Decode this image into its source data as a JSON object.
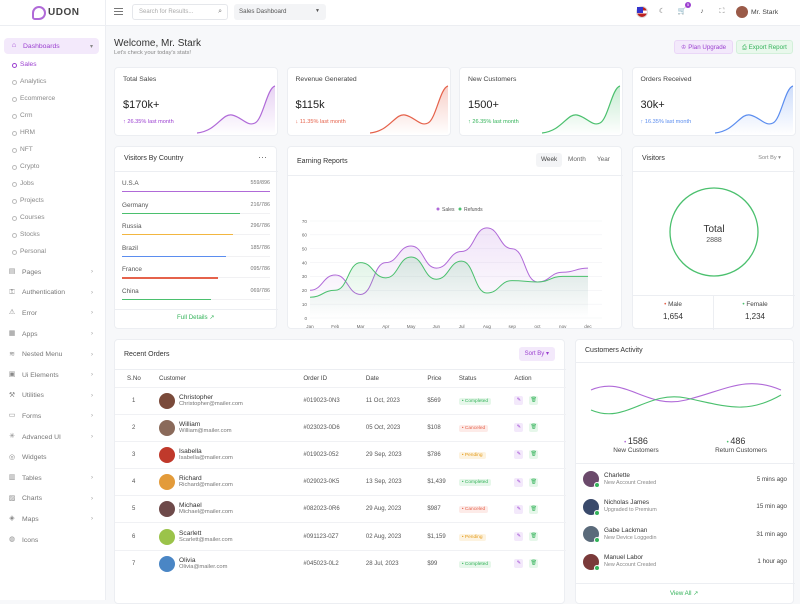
{
  "brand": {
    "name": "UDON"
  },
  "sidebar": {
    "group": "Dashboards",
    "sub_items": [
      "Sales",
      "Analytics",
      "Ecommerce",
      "Crm",
      "HRM",
      "NFT",
      "Crypto",
      "Jobs",
      "Projects",
      "Courses",
      "Stocks",
      "Personal"
    ],
    "items": [
      {
        "label": "Pages",
        "icon": "doc-icon",
        "chevron": true
      },
      {
        "label": "Authentication",
        "icon": "lock-icon",
        "chevron": true
      },
      {
        "label": "Error",
        "icon": "warning-icon",
        "chevron": true
      },
      {
        "label": "Apps",
        "icon": "apps-icon",
        "chevron": true
      },
      {
        "label": "Nested Menu",
        "icon": "layers-icon",
        "chevron": true
      },
      {
        "label": "Ui Elements",
        "icon": "cube-icon",
        "chevron": true
      },
      {
        "label": "Utilities",
        "icon": "tool-icon",
        "chevron": true
      },
      {
        "label": "Forms",
        "icon": "form-icon",
        "chevron": true
      },
      {
        "label": "Advanced UI",
        "icon": "sparkle-icon",
        "chevron": true
      },
      {
        "label": "Widgets",
        "icon": "widget-icon",
        "chevron": false
      },
      {
        "label": "Tables",
        "icon": "table-icon",
        "chevron": true
      },
      {
        "label": "Charts",
        "icon": "chart-icon",
        "chevron": true
      },
      {
        "label": "Maps",
        "icon": "map-icon",
        "chevron": true
      },
      {
        "label": "Icons",
        "icon": "icons-icon",
        "chevron": false
      }
    ]
  },
  "topbar": {
    "search_placeholder": "Search for Results...",
    "dashboard_select": "Sales Dashboard",
    "cart_count": "5",
    "user_name": "Mr. Stark"
  },
  "header": {
    "title": "Welcome, Mr. Stark",
    "subtitle": "Let's check your today's stats!",
    "plan_button": "Plan Upgrade",
    "export_button": "Export Report"
  },
  "stats": [
    {
      "label": "Total Sales",
      "value": "$170k+",
      "change": "26.35% last month",
      "direction": "up",
      "color": "#b06ad8"
    },
    {
      "label": "Revenue Generated",
      "value": "$115k",
      "change": "11.35% last month",
      "direction": "down",
      "color": "#e5624b"
    },
    {
      "label": "New Customers",
      "value": "1500+",
      "change": "26.35% last month",
      "direction": "up",
      "color": "#4bc06e"
    },
    {
      "label": "Orders Received",
      "value": "30k+",
      "change": "16.35% last month",
      "direction": "up",
      "color": "#5b8def"
    }
  ],
  "visitors_by_country": {
    "title": "Visitors By Country",
    "more_icon": "more-icon",
    "rows": [
      {
        "name": "U.S.A",
        "value": "559/896",
        "pct": 1.0,
        "color": "#b06ad8"
      },
      {
        "name": "Germany",
        "value": "216/786",
        "pct": 0.8,
        "color": "#4bc06e"
      },
      {
        "name": "Russia",
        "value": "296/786",
        "pct": 0.75,
        "color": "#f2b640"
      },
      {
        "name": "Brazil",
        "value": "185/786",
        "pct": 0.7,
        "color": "#5b8def"
      },
      {
        "name": "France",
        "value": "095/786",
        "pct": 0.65,
        "color": "#e5624b"
      },
      {
        "name": "China",
        "value": "069/786",
        "pct": 0.6,
        "color": "#4bc06e"
      }
    ],
    "footer_link": "Full Details"
  },
  "earning_reports": {
    "title": "Earning Reports",
    "tabs": [
      "Week",
      "Month",
      "Year"
    ],
    "active_tab": "Week"
  },
  "chart_data": {
    "type": "line",
    "categories": [
      "Jan",
      "Feb",
      "Mar",
      "Apr",
      "May",
      "Jun",
      "Jul",
      "Aug",
      "sep",
      "oct",
      "nov",
      "dec"
    ],
    "series": [
      {
        "name": "Sales",
        "color": "#b06ad8",
        "values": [
          20,
          31,
          17,
          40,
          52,
          36,
          48,
          65,
          50,
          26,
          33,
          36
        ]
      },
      {
        "name": "Refunds",
        "color": "#4bc06e",
        "values": [
          15,
          20,
          40,
          29,
          44,
          28,
          41,
          18,
          27,
          26,
          30,
          30
        ]
      }
    ],
    "ylim": [
      0,
      70
    ],
    "yticks": [
      0,
      10,
      20,
      30,
      40,
      50,
      60,
      70
    ],
    "legend": "top"
  },
  "visitors": {
    "title": "Visitors",
    "sort_label": "Sort By",
    "total_label": "Total",
    "total_value": "2888",
    "male_label": "Male",
    "male_value": "1,654",
    "female_label": "Female",
    "female_value": "1,234"
  },
  "recent_orders": {
    "title": "Recent Orders",
    "sort_label": "Sort By",
    "columns": [
      "S.No",
      "Customer",
      "Order ID",
      "Date",
      "Price",
      "Status",
      "Action"
    ],
    "rows": [
      {
        "no": "1",
        "name": "Christopher",
        "email": "Christopher@mailer.com",
        "order": "#019023-0N3",
        "date": "11 Oct, 2023",
        "price": "$569",
        "status": "Completed",
        "avatar": "#7a4a3a"
      },
      {
        "no": "2",
        "name": "William",
        "email": "William@mailer.com",
        "order": "#023023-0D6",
        "date": "05 Oct, 2023",
        "price": "$108",
        "status": "Canceled",
        "avatar": "#8a6a5a"
      },
      {
        "no": "3",
        "name": "Isabella",
        "email": "Isabella@mailer.com",
        "order": "#019023-052",
        "date": "29 Sep, 2023",
        "price": "$786",
        "status": "Pending",
        "avatar": "#c0392b"
      },
      {
        "no": "4",
        "name": "Richard",
        "email": "Richard@mailer.com",
        "order": "#029023-0K5",
        "date": "13 Sep, 2023",
        "price": "$1,439",
        "status": "Completed",
        "avatar": "#e39b3a"
      },
      {
        "no": "5",
        "name": "Michael",
        "email": "Michael@mailer.com",
        "order": "#082023-0R6",
        "date": "29 Aug, 2023",
        "price": "$987",
        "status": "Canceled",
        "avatar": "#6e4a4a"
      },
      {
        "no": "6",
        "name": "Scarlett",
        "email": "Scarlett@mailer.com",
        "order": "#091123-0Z7",
        "date": "02 Aug, 2023",
        "price": "$1,159",
        "status": "Pending",
        "avatar": "#9bc34a"
      },
      {
        "no": "7",
        "name": "Olivia",
        "email": "Olivia@mailer.com",
        "order": "#045023-0L2",
        "date": "28 Jul, 2023",
        "price": "$99",
        "status": "Completed",
        "avatar": "#4a86c5"
      }
    ]
  },
  "customers_activity": {
    "title": "Customers Activity",
    "new_value": "1586",
    "new_label": "New Customers",
    "return_value": "486",
    "return_label": "Return Customers",
    "items": [
      {
        "name": "Charlette",
        "desc": "New Account Created",
        "time": "5 mins ago",
        "avatar": "#6b4a6b"
      },
      {
        "name": "Nicholas James",
        "desc": "Upgraded to Premium",
        "time": "15 min ago",
        "avatar": "#3a4a6b"
      },
      {
        "name": "Gabe Lackman",
        "desc": "New Device Loggedin",
        "time": "31 min ago",
        "avatar": "#5a6a7a"
      },
      {
        "name": "Manuel Labor",
        "desc": "New Account Created",
        "time": "1 hour ago",
        "avatar": "#7a3a3a"
      }
    ],
    "footer_link": "View All"
  }
}
